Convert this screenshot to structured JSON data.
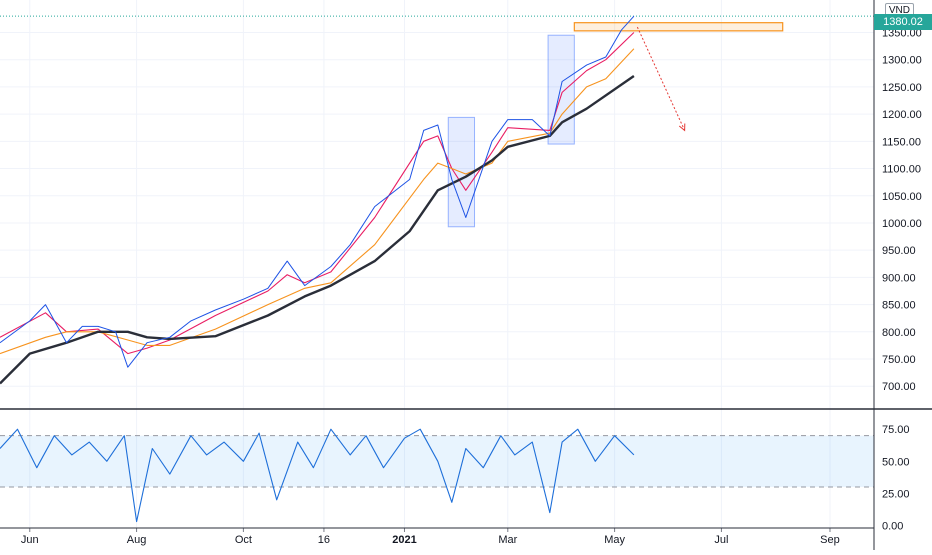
{
  "chart_data": [
    {
      "type": "line",
      "title": "",
      "currency": "VND",
      "last_price_label": "1380.02",
      "y_ticks": [
        "1350.00",
        "1300.00",
        "1250.00",
        "1200.00",
        "1150.00",
        "1100.00",
        "1050.00",
        "1000.00",
        "950.00",
        "900.00",
        "850.00",
        "800.00",
        "750.00",
        "700.00"
      ],
      "ylim": [
        660,
        1395
      ],
      "x_tick_labels": [
        "Jun",
        "Aug",
        "Oct",
        "16",
        "2021",
        "Mar",
        "May",
        "Jul",
        "Sep"
      ],
      "x_tick_bold": [
        "2021"
      ],
      "series": [
        {
          "color": "#1e53e5",
          "style": "price",
          "x": [
            "2020-05-15",
            "2020-06-01",
            "2020-06-10",
            "2020-06-22",
            "2020-07-01",
            "2020-07-10",
            "2020-07-20",
            "2020-07-27",
            "2020-08-07",
            "2020-08-20",
            "2020-09-01",
            "2020-09-15",
            "2020-10-01",
            "2020-10-15",
            "2020-10-26",
            "2020-11-05",
            "2020-11-20",
            "2020-12-01",
            "2020-12-15",
            "2021-01-04",
            "2021-01-12",
            "2021-01-20",
            "2021-01-28",
            "2021-02-05",
            "2021-02-20",
            "2021-03-01",
            "2021-03-15",
            "2021-03-25",
            "2021-04-01",
            "2021-04-15",
            "2021-04-26",
            "2021-05-05",
            "2021-05-12"
          ],
          "y": [
            780,
            820,
            850,
            780,
            810,
            810,
            800,
            735,
            780,
            790,
            820,
            840,
            860,
            880,
            930,
            885,
            920,
            960,
            1030,
            1080,
            1170,
            1180,
            1080,
            1010,
            1150,
            1190,
            1190,
            1160,
            1260,
            1290,
            1305,
            1355,
            1380
          ]
        },
        {
          "color": "#e91e63",
          "style": "ma",
          "x": [
            "2020-05-15",
            "2020-06-10",
            "2020-06-22",
            "2020-07-10",
            "2020-07-27",
            "2020-08-07",
            "2020-08-20",
            "2020-09-15",
            "2020-10-15",
            "2020-10-26",
            "2020-11-05",
            "2020-11-20",
            "2020-12-15",
            "2021-01-12",
            "2021-01-20",
            "2021-01-28",
            "2021-02-05",
            "2021-02-20",
            "2021-03-01",
            "2021-03-25",
            "2021-04-01",
            "2021-04-15",
            "2021-04-26",
            "2021-05-12"
          ],
          "y": [
            790,
            835,
            800,
            805,
            760,
            770,
            785,
            830,
            875,
            905,
            890,
            910,
            1010,
            1150,
            1160,
            1100,
            1060,
            1130,
            1175,
            1170,
            1240,
            1280,
            1300,
            1350
          ]
        },
        {
          "color": "#f7931e",
          "style": "ma",
          "x": [
            "2020-05-15",
            "2020-06-10",
            "2020-06-22",
            "2020-07-10",
            "2020-07-27",
            "2020-08-07",
            "2020-08-20",
            "2020-09-15",
            "2020-10-15",
            "2020-11-05",
            "2020-11-20",
            "2020-12-15",
            "2021-01-12",
            "2021-01-20",
            "2021-01-28",
            "2021-02-05",
            "2021-02-20",
            "2021-03-01",
            "2021-03-25",
            "2021-04-01",
            "2021-04-15",
            "2021-04-26",
            "2021-05-12"
          ],
          "y": [
            760,
            790,
            800,
            800,
            785,
            775,
            775,
            805,
            850,
            880,
            890,
            960,
            1080,
            1110,
            1100,
            1090,
            1110,
            1150,
            1165,
            1200,
            1250,
            1265,
            1320
          ]
        },
        {
          "color": "#2a2e39",
          "style": "ma-thick",
          "x": [
            "2020-05-15",
            "2020-06-01",
            "2020-06-22",
            "2020-07-10",
            "2020-07-27",
            "2020-08-07",
            "2020-08-20",
            "2020-09-15",
            "2020-10-15",
            "2020-11-05",
            "2020-11-20",
            "2020-12-15",
            "2021-01-04",
            "2021-01-20",
            "2021-02-05",
            "2021-02-20",
            "2021-03-01",
            "2021-03-25",
            "2021-04-01",
            "2021-04-15",
            "2021-05-12"
          ],
          "y": [
            705,
            760,
            780,
            800,
            800,
            790,
            787,
            792,
            830,
            865,
            885,
            930,
            985,
            1060,
            1085,
            1115,
            1140,
            1160,
            1185,
            1210,
            1270
          ]
        }
      ],
      "annotations": [
        {
          "kind": "box",
          "x": [
            "2021-01-26",
            "2021-02-10"
          ],
          "y": [
            993,
            1194
          ],
          "color": "#2962ff"
        },
        {
          "kind": "box",
          "x": [
            "2021-03-24",
            "2021-04-08"
          ],
          "y": [
            1145,
            1345
          ],
          "color": "#2962ff"
        },
        {
          "kind": "zone",
          "x": [
            "2021-04-08",
            "2021-08-05"
          ],
          "y": [
            1353,
            1368
          ],
          "color": "#f7931e"
        },
        {
          "kind": "arrow",
          "x": [
            "2021-05-14",
            "2021-06-10"
          ],
          "y": [
            1360,
            1170
          ],
          "color": "#e53935"
        }
      ]
    },
    {
      "type": "line",
      "title": "",
      "y_ticks": [
        "75.00",
        "50.00",
        "25.00",
        "0.00"
      ],
      "ylim": [
        -2,
        90
      ],
      "band": [
        30,
        70
      ],
      "series": [
        {
          "color": "#1e6fd9",
          "x": [
            "2020-05-15",
            "2020-05-25",
            "2020-06-05",
            "2020-06-15",
            "2020-06-25",
            "2020-07-05",
            "2020-07-15",
            "2020-07-25",
            "2020-08-01",
            "2020-08-10",
            "2020-08-20",
            "2020-09-01",
            "2020-09-10",
            "2020-09-20",
            "2020-10-01",
            "2020-10-10",
            "2020-10-20",
            "2020-11-01",
            "2020-11-10",
            "2020-11-20",
            "2020-12-01",
            "2020-12-10",
            "2020-12-20",
            "2021-01-01",
            "2021-01-10",
            "2021-01-20",
            "2021-01-28",
            "2021-02-05",
            "2021-02-15",
            "2021-02-25",
            "2021-03-05",
            "2021-03-15",
            "2021-03-25",
            "2021-04-01",
            "2021-04-10",
            "2021-04-20",
            "2021-05-01",
            "2021-05-12"
          ],
          "y": [
            60,
            75,
            45,
            70,
            55,
            65,
            50,
            70,
            3,
            60,
            40,
            70,
            55,
            65,
            50,
            72,
            20,
            65,
            45,
            75,
            55,
            70,
            45,
            68,
            75,
            50,
            18,
            60,
            45,
            70,
            55,
            65,
            10,
            65,
            75,
            50,
            70,
            55
          ]
        }
      ]
    }
  ]
}
